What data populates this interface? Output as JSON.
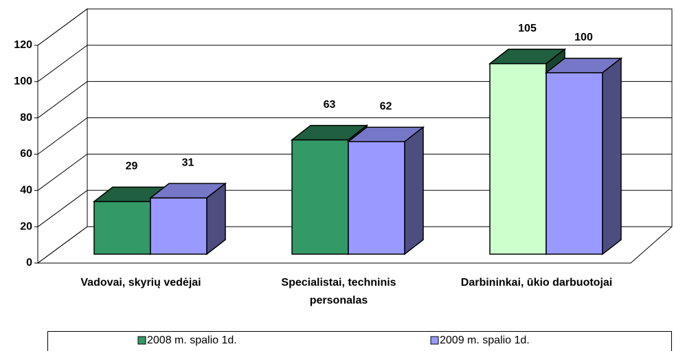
{
  "chart_data": {
    "type": "bar3d",
    "categories": [
      "Vadovai, skyrių vedėjai",
      "Specialistai, techninis personalas",
      "Darbininkai, ūkio darbuotojai"
    ],
    "series": [
      {
        "name": "2008 m. spalio 1d.",
        "color": "#339966",
        "colors": [
          "#339966",
          "#339966",
          "#ccffcc"
        ],
        "values": [
          29,
          63,
          105
        ]
      },
      {
        "name": "2009 m. spalio 1d.",
        "color": "#9999ff",
        "values": [
          31,
          62,
          100
        ]
      }
    ],
    "ylim": [
      0,
      120
    ],
    "yticks": [
      0,
      20,
      40,
      60,
      80,
      100,
      120
    ],
    "grid": true,
    "legend": "bottom"
  }
}
